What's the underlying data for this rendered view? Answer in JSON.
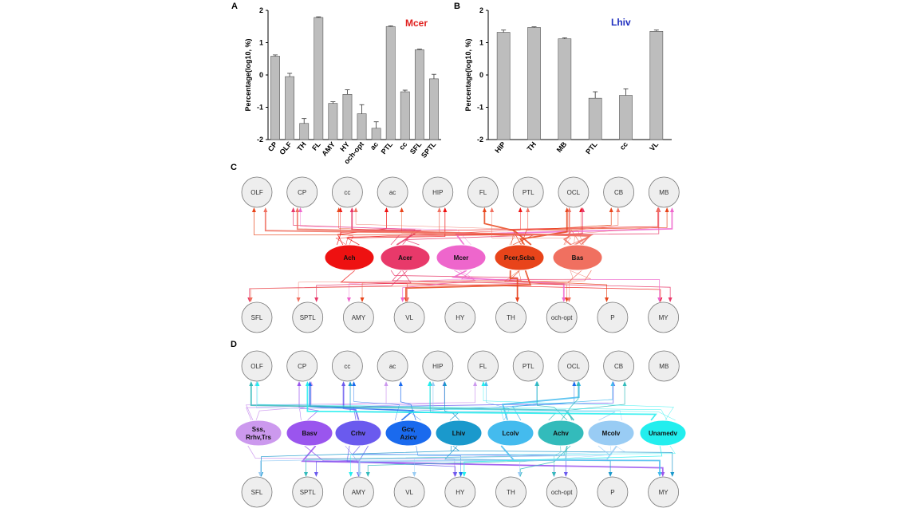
{
  "chart_data": [
    {
      "panel": "A",
      "type": "bar",
      "annotation": "Mcer",
      "annotation_color": "#e0201e",
      "ylabel": "Percentage(log10, %)",
      "ylim": [
        -2,
        2
      ],
      "yticks": [
        "2",
        "1",
        "0",
        "-1",
        "-2"
      ],
      "categories": [
        "CP",
        "OLF",
        "TH",
        "FL",
        "AMY",
        "HY",
        "och-opt",
        "ac",
        "PTL",
        "cc",
        "SFL",
        "SPTL"
      ],
      "values": [
        0.58,
        -0.05,
        -1.5,
        1.78,
        -0.88,
        -0.6,
        -1.2,
        -1.65,
        1.5,
        -0.52,
        0.78,
        -0.12
      ],
      "errors": [
        0.04,
        0.1,
        0.15,
        0.02,
        0.05,
        0.14,
        0.28,
        0.2,
        0.02,
        0.05,
        0.02,
        0.14
      ],
      "bar_color": "#bdbdbd"
    },
    {
      "panel": "B",
      "type": "bar",
      "annotation": "Lhiv",
      "annotation_color": "#1f2fbf",
      "ylabel": "Percentage(log10, %)",
      "ylim": [
        -2,
        2
      ],
      "yticks": [
        "2",
        "1",
        "0",
        "-1",
        "-2"
      ],
      "categories": [
        "HIP",
        "TH",
        "MB",
        "PTL",
        "cc",
        "VL"
      ],
      "values": [
        1.32,
        1.47,
        1.12,
        -0.72,
        -0.63,
        1.35
      ],
      "errors": [
        0.07,
        0.02,
        0.03,
        0.2,
        0.2,
        0.04
      ],
      "bar_color": "#bdbdbd"
    },
    {
      "panel": "C",
      "type": "diagram",
      "top_regions": [
        "OLF",
        "CP",
        "cc",
        "ac",
        "HIP",
        "FL",
        "PTL",
        "OCL",
        "CB",
        "MB"
      ],
      "bottom_regions": [
        "SFL",
        "SPTL",
        "AMY",
        "VL",
        "HY",
        "TH",
        "och-opt",
        "P",
        "MY"
      ],
      "sources": [
        {
          "label": "Ach",
          "color": "#ee1111"
        },
        {
          "label": "Acer",
          "color": "#e8396a"
        },
        {
          "label": "Mcer",
          "color": "#ee66cc"
        },
        {
          "label": "Pcer,Scba",
          "color": "#e8441a"
        },
        {
          "label": "Bas",
          "color": "#f07060"
        }
      ]
    },
    {
      "panel": "D",
      "type": "diagram",
      "top_regions": [
        "OLF",
        "CP",
        "cc",
        "ac",
        "HIP",
        "FL",
        "PTL",
        "OCL",
        "CB",
        "MB"
      ],
      "bottom_regions": [
        "SFL",
        "SPTL",
        "AMY",
        "VL",
        "HY",
        "TH",
        "och-opt",
        "P",
        "MY"
      ],
      "sources": [
        {
          "label": "Sss,",
          "label2": "Rrhv,Trs",
          "color": "#cc99ee"
        },
        {
          "label": "Basv",
          "color": "#9a55ee"
        },
        {
          "label": "Crhv",
          "color": "#6a5aee"
        },
        {
          "label": "Gcv,",
          "label2": "Azicv",
          "color": "#1a6aee"
        },
        {
          "label": "Lhiv",
          "color": "#1a99cc"
        },
        {
          "label": "Lcolv",
          "color": "#44bbee"
        },
        {
          "label": "Achv",
          "color": "#33bbbb"
        },
        {
          "label": "Mcolv",
          "color": "#99ccf4"
        },
        {
          "label": "Unamedv",
          "color": "#22eeee"
        }
      ]
    }
  ]
}
